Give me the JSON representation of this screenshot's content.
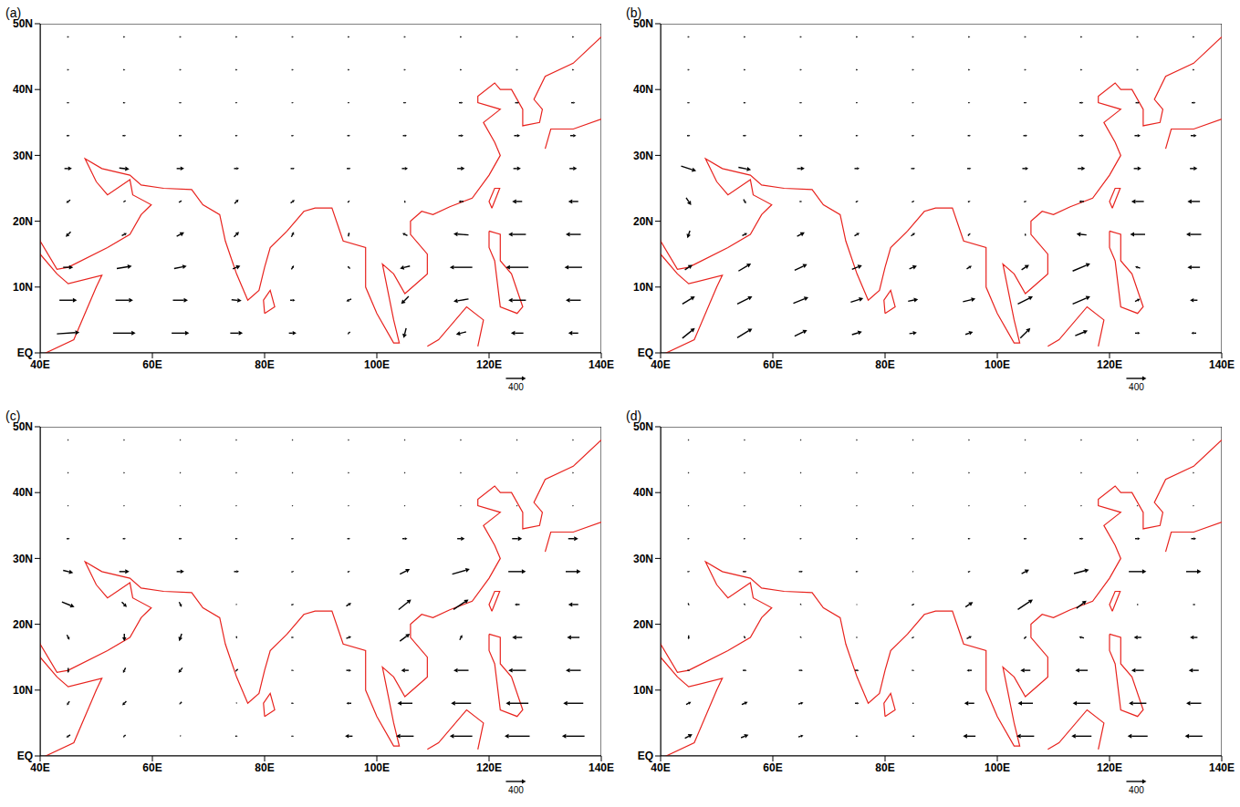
{
  "chart_data": [
    {
      "type": "vector",
      "title": "(a)",
      "color": "#000000",
      "reference_vector": 400,
      "xlim": [
        40,
        140
      ],
      "ylim": [
        0,
        50
      ],
      "xticks": [
        {
          "value": 40,
          "label": "40E"
        },
        {
          "value": 60,
          "label": "60E"
        },
        {
          "value": 80,
          "label": "80E"
        },
        {
          "value": 100,
          "label": "100E"
        },
        {
          "value": 120,
          "label": "120E"
        },
        {
          "value": 140,
          "label": "140E"
        }
      ],
      "yticks": [
        {
          "value": 0,
          "label": "EQ"
        },
        {
          "value": 10,
          "label": "10N"
        },
        {
          "value": 20,
          "label": "20N"
        },
        {
          "value": 30,
          "label": "30N"
        },
        {
          "value": 40,
          "label": "40N"
        },
        {
          "value": 50,
          "label": "50N"
        }
      ],
      "lon": [
        45,
        55,
        65,
        75,
        85,
        95,
        105,
        115,
        125,
        135
      ],
      "lat": [
        3,
        8,
        13,
        18,
        23,
        28,
        33,
        38,
        43,
        48
      ],
      "u": [
        [
          450,
          450,
          350,
          250,
          150,
          -50,
          -50,
          -200,
          -250,
          -200
        ],
        [
          350,
          350,
          300,
          200,
          100,
          -100,
          -150,
          -300,
          -350,
          -300
        ],
        [
          200,
          300,
          250,
          150,
          50,
          -50,
          -200,
          -450,
          -450,
          -350
        ],
        [
          -100,
          100,
          150,
          100,
          50,
          20,
          -100,
          -300,
          -350,
          -300
        ],
        [
          -80,
          -50,
          60,
          80,
          80,
          40,
          0,
          -100,
          -200,
          -200
        ],
        [
          150,
          200,
          150,
          100,
          80,
          80,
          120,
          150,
          150,
          150
        ],
        [
          60,
          70,
          60,
          50,
          50,
          60,
          80,
          100,
          120,
          120
        ],
        [
          50,
          50,
          50,
          40,
          40,
          40,
          60,
          80,
          80,
          80
        ],
        [
          40,
          40,
          40,
          40,
          40,
          40,
          40,
          40,
          40,
          40
        ],
        [
          40,
          40,
          40,
          40,
          40,
          40,
          40,
          40,
          40,
          40
        ]
      ],
      "v": [
        [
          30,
          0,
          0,
          0,
          0,
          -50,
          -200,
          -50,
          0,
          0
        ],
        [
          0,
          0,
          0,
          -20,
          0,
          -50,
          -150,
          -50,
          0,
          0
        ],
        [
          0,
          50,
          50,
          60,
          80,
          50,
          -50,
          0,
          0,
          0
        ],
        [
          -100,
          50,
          80,
          100,
          100,
          80,
          50,
          20,
          0,
          0
        ],
        [
          -60,
          -30,
          40,
          80,
          60,
          40,
          50,
          0,
          0,
          0
        ],
        [
          0,
          -20,
          0,
          0,
          0,
          0,
          0,
          0,
          0,
          0
        ],
        [
          0,
          0,
          0,
          0,
          0,
          0,
          0,
          0,
          0,
          0
        ],
        [
          0,
          0,
          0,
          0,
          0,
          0,
          0,
          0,
          0,
          0
        ],
        [
          0,
          0,
          0,
          0,
          0,
          0,
          0,
          0,
          0,
          0
        ],
        [
          0,
          0,
          0,
          0,
          0,
          0,
          0,
          0,
          0,
          0
        ]
      ]
    },
    {
      "type": "vector",
      "title": "(b)",
      "color": "#000000",
      "reference_vector": 400,
      "xlim": [
        40,
        140
      ],
      "ylim": [
        0,
        50
      ],
      "xticks": [
        {
          "value": 40,
          "label": "40E"
        },
        {
          "value": 60,
          "label": "60E"
        },
        {
          "value": 80,
          "label": "80E"
        },
        {
          "value": 100,
          "label": "100E"
        },
        {
          "value": 120,
          "label": "120E"
        },
        {
          "value": 140,
          "label": "140E"
        }
      ],
      "yticks": [
        {
          "value": 0,
          "label": "EQ"
        },
        {
          "value": 10,
          "label": "10N"
        },
        {
          "value": 20,
          "label": "20N"
        },
        {
          "value": 30,
          "label": "30N"
        },
        {
          "value": 40,
          "label": "40N"
        },
        {
          "value": 50,
          "label": "50N"
        }
      ],
      "lon": [
        45,
        55,
        65,
        75,
        85,
        95,
        105,
        115,
        125,
        135
      ],
      "lat": [
        3,
        8,
        13,
        18,
        23,
        28,
        33,
        38,
        43,
        48
      ],
      "u": [
        [
          250,
          300,
          250,
          200,
          150,
          150,
          200,
          250,
          100,
          -100
        ],
        [
          250,
          300,
          300,
          250,
          200,
          250,
          300,
          350,
          100,
          -150
        ],
        [
          150,
          250,
          250,
          200,
          150,
          100,
          150,
          350,
          -100,
          -250
        ],
        [
          -50,
          100,
          150,
          100,
          80,
          50,
          0,
          -200,
          -300,
          -300
        ],
        [
          100,
          50,
          50,
          50,
          50,
          50,
          50,
          -100,
          -250,
          -250
        ],
        [
          300,
          250,
          150,
          100,
          80,
          80,
          120,
          150,
          150,
          150
        ],
        [
          60,
          70,
          60,
          50,
          50,
          60,
          80,
          100,
          120,
          120
        ],
        [
          50,
          50,
          50,
          40,
          40,
          40,
          60,
          80,
          80,
          80
        ],
        [
          40,
          40,
          40,
          40,
          40,
          40,
          40,
          40,
          40,
          40
        ],
        [
          40,
          40,
          40,
          40,
          40,
          40,
          40,
          40,
          40,
          40
        ]
      ],
      "v": [
        [
          200,
          180,
          120,
          60,
          20,
          50,
          200,
          100,
          0,
          0
        ],
        [
          150,
          150,
          120,
          80,
          40,
          60,
          150,
          150,
          50,
          0
        ],
        [
          100,
          150,
          120,
          80,
          60,
          60,
          100,
          150,
          30,
          0
        ],
        [
          -150,
          50,
          80,
          60,
          60,
          50,
          50,
          20,
          0,
          0
        ],
        [
          -150,
          -80,
          0,
          30,
          30,
          20,
          20,
          0,
          0,
          0
        ],
        [
          -100,
          -50,
          0,
          0,
          0,
          0,
          0,
          0,
          0,
          0
        ],
        [
          0,
          0,
          0,
          0,
          0,
          0,
          0,
          0,
          0,
          0
        ],
        [
          0,
          0,
          0,
          0,
          0,
          0,
          0,
          0,
          0,
          0
        ],
        [
          0,
          0,
          0,
          0,
          0,
          0,
          0,
          0,
          0,
          0
        ],
        [
          0,
          0,
          0,
          0,
          0,
          0,
          0,
          0,
          0,
          0
        ]
      ]
    },
    {
      "type": "vector",
      "title": "(c)",
      "color": "#000000",
      "reference_vector": 400,
      "xlim": [
        40,
        140
      ],
      "ylim": [
        0,
        50
      ],
      "xticks": [
        {
          "value": 40,
          "label": "40E"
        },
        {
          "value": 60,
          "label": "60E"
        },
        {
          "value": 80,
          "label": "80E"
        },
        {
          "value": 100,
          "label": "100E"
        },
        {
          "value": 120,
          "label": "120E"
        },
        {
          "value": 140,
          "label": "140E"
        }
      ],
      "yticks": [
        {
          "value": 0,
          "label": "EQ"
        },
        {
          "value": 10,
          "label": "10N"
        },
        {
          "value": 20,
          "label": "20N"
        },
        {
          "value": 30,
          "label": "30N"
        },
        {
          "value": 40,
          "label": "40N"
        },
        {
          "value": 50,
          "label": "50N"
        }
      ],
      "lon": [
        45,
        55,
        65,
        75,
        85,
        95,
        105,
        115,
        125,
        135
      ],
      "lat": [
        3,
        8,
        13,
        18,
        23,
        28,
        33,
        38,
        43,
        48
      ],
      "u": [
        [
          -80,
          -50,
          0,
          50,
          50,
          -150,
          -350,
          -450,
          -500,
          -450
        ],
        [
          -50,
          -80,
          -50,
          0,
          50,
          -100,
          -300,
          -400,
          -450,
          -400
        ],
        [
          0,
          -50,
          -80,
          -50,
          50,
          100,
          -150,
          -300,
          -350,
          -300
        ],
        [
          50,
          0,
          -50,
          0,
          50,
          100,
          200,
          50,
          -200,
          -250
        ],
        [
          250,
          100,
          50,
          20,
          50,
          100,
          250,
          300,
          -100,
          -200
        ],
        [
          200,
          200,
          150,
          100,
          50,
          50,
          200,
          350,
          350,
          300
        ],
        [
          60,
          60,
          60,
          50,
          50,
          60,
          100,
          150,
          200,
          200
        ],
        [
          30,
          30,
          30,
          30,
          30,
          30,
          30,
          30,
          30,
          30
        ],
        [
          30,
          30,
          30,
          30,
          30,
          30,
          30,
          30,
          30,
          30
        ],
        [
          30,
          30,
          30,
          30,
          30,
          30,
          30,
          30,
          30,
          30
        ]
      ],
      "v": [
        [
          -50,
          -50,
          -30,
          0,
          0,
          0,
          0,
          0,
          0,
          0
        ],
        [
          -80,
          -80,
          -50,
          -30,
          0,
          0,
          0,
          0,
          0,
          0
        ],
        [
          -100,
          -100,
          -100,
          -50,
          0,
          0,
          0,
          0,
          0,
          0
        ],
        [
          -100,
          -150,
          -150,
          -50,
          0,
          40,
          150,
          100,
          0,
          0
        ],
        [
          -100,
          -100,
          -100,
          -20,
          20,
          60,
          200,
          200,
          0,
          0
        ],
        [
          -50,
          0,
          0,
          0,
          20,
          20,
          100,
          100,
          0,
          0
        ],
        [
          0,
          0,
          0,
          0,
          0,
          0,
          0,
          0,
          0,
          0
        ],
        [
          0,
          0,
          0,
          0,
          0,
          0,
          0,
          0,
          0,
          0
        ],
        [
          0,
          0,
          0,
          0,
          0,
          0,
          0,
          0,
          0,
          0
        ],
        [
          0,
          0,
          0,
          0,
          0,
          0,
          0,
          0,
          0,
          0
        ]
      ]
    },
    {
      "type": "vector",
      "title": "(d)",
      "color": "#000000",
      "reference_vector": 400,
      "xlim": [
        40,
        140
      ],
      "ylim": [
        0,
        50
      ],
      "xticks": [
        {
          "value": 40,
          "label": "40E"
        },
        {
          "value": 60,
          "label": "60E"
        },
        {
          "value": 80,
          "label": "80E"
        },
        {
          "value": 100,
          "label": "100E"
        },
        {
          "value": 120,
          "label": "120E"
        },
        {
          "value": 140,
          "label": "140E"
        }
      ],
      "yticks": [
        {
          "value": 0,
          "label": "EQ"
        },
        {
          "value": 10,
          "label": "10N"
        },
        {
          "value": 20,
          "label": "20N"
        },
        {
          "value": 30,
          "label": "30N"
        },
        {
          "value": 40,
          "label": "40N"
        },
        {
          "value": 50,
          "label": "50N"
        }
      ],
      "lon": [
        45,
        55,
        65,
        75,
        85,
        95,
        105,
        115,
        125,
        135
      ],
      "lat": [
        3,
        8,
        13,
        18,
        23,
        28,
        33,
        38,
        43,
        48
      ],
      "u": [
        [
          150,
          150,
          100,
          50,
          -50,
          -250,
          -350,
          -400,
          -400,
          -350
        ],
        [
          100,
          120,
          100,
          80,
          0,
          -200,
          -300,
          -350,
          -350,
          -300
        ],
        [
          50,
          80,
          80,
          80,
          50,
          -100,
          -200,
          -250,
          -250,
          -200
        ],
        [
          0,
          30,
          30,
          30,
          50,
          100,
          50,
          -100,
          -150,
          -150
        ],
        [
          20,
          30,
          30,
          20,
          50,
          150,
          300,
          200,
          0,
          -50
        ],
        [
          50,
          80,
          80,
          50,
          30,
          50,
          150,
          300,
          350,
          300
        ],
        [
          40,
          40,
          40,
          40,
          40,
          50,
          60,
          80,
          100,
          100
        ],
        [
          30,
          30,
          30,
          30,
          30,
          30,
          30,
          30,
          30,
          30
        ],
        [
          30,
          30,
          30,
          30,
          30,
          30,
          30,
          30,
          30,
          30
        ],
        [
          30,
          30,
          30,
          30,
          30,
          30,
          30,
          30,
          30,
          30
        ]
      ],
      "v": [
        [
          80,
          60,
          30,
          0,
          0,
          0,
          0,
          0,
          0,
          0
        ],
        [
          50,
          50,
          30,
          0,
          0,
          0,
          0,
          0,
          0,
          0
        ],
        [
          0,
          0,
          0,
          0,
          0,
          0,
          0,
          0,
          0,
          0
        ],
        [
          -80,
          -50,
          -30,
          0,
          20,
          50,
          50,
          20,
          0,
          0
        ],
        [
          -50,
          -30,
          -20,
          0,
          30,
          100,
          200,
          150,
          0,
          0
        ],
        [
          0,
          0,
          0,
          0,
          0,
          20,
          80,
          80,
          0,
          0
        ],
        [
          0,
          0,
          0,
          0,
          0,
          0,
          0,
          0,
          0,
          0
        ],
        [
          0,
          0,
          0,
          0,
          0,
          0,
          0,
          0,
          0,
          0
        ],
        [
          0,
          0,
          0,
          0,
          0,
          0,
          0,
          0,
          0,
          0
        ],
        [
          0,
          0,
          0,
          0,
          0,
          0,
          0,
          0,
          0,
          0
        ]
      ]
    }
  ]
}
